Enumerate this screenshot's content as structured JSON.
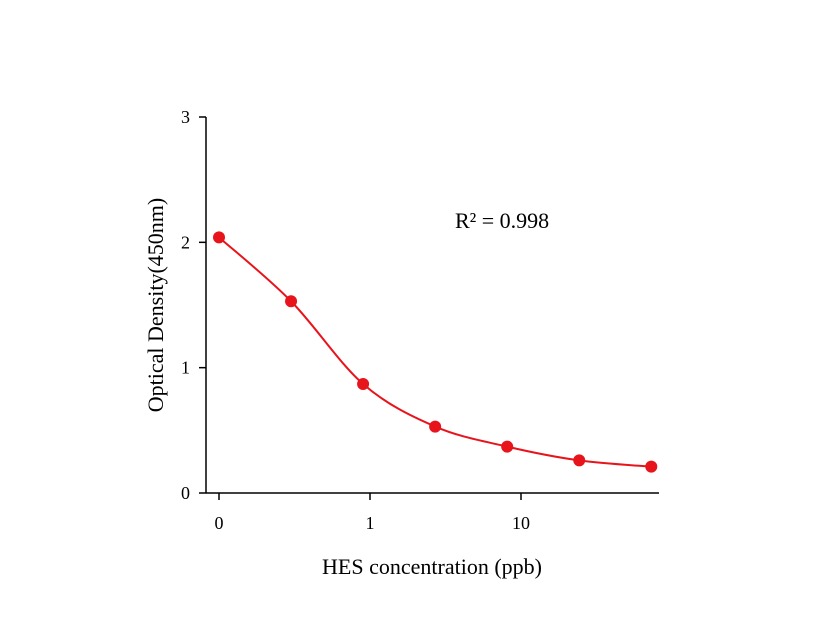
{
  "chart_data": {
    "type": "scatter",
    "xlabel": "HES concentration (ppb)",
    "ylabel": "Optical Density(450nm)",
    "annotation": "R² = 0.998",
    "x_ticks": [
      "0",
      "1",
      "10"
    ],
    "y_ticks": [
      "0",
      "1",
      "2",
      "3"
    ],
    "ylim": [
      0,
      3
    ],
    "grid": false,
    "series": [
      {
        "color": "#e8141b",
        "marker": "circle",
        "x": [
          0,
          0.3,
          0.9,
          2.7,
          8.1,
          24.3,
          72.9
        ],
        "y": [
          2.04,
          1.53,
          0.87,
          0.53,
          0.37,
          0.26,
          0.21
        ],
        "fit_curve": true
      }
    ]
  }
}
